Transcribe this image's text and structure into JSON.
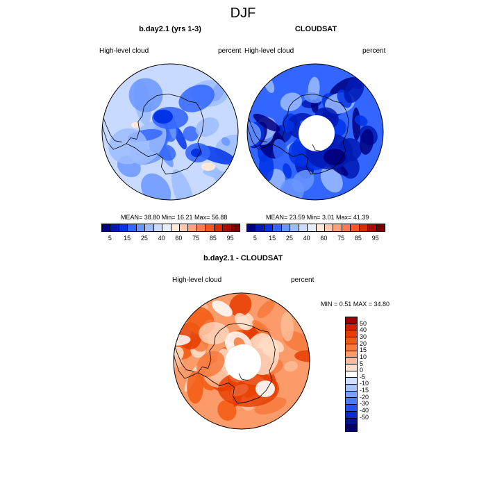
{
  "title": "DJF",
  "panels": [
    {
      "title": "b.day2.1 (yrs 1-3)",
      "left_label": "High-level cloud",
      "right_label": "percent",
      "stats": "MEAN=  38.80  Min=  16.21  Max=  56.88",
      "field": "model"
    },
    {
      "title": "CLOUDSAT",
      "left_label": "High-level cloud",
      "right_label": "percent",
      "stats": "MEAN=  23.59  Min=   3.01  Max=  41.39",
      "field": "obs"
    },
    {
      "title": "b.day2.1 - CLOUDSAT",
      "left_label": "High-level cloud",
      "right_label": "percent",
      "stats": "MIN =   0.51 MAX =  34.80",
      "field": "diff"
    }
  ],
  "colorbar_abs": {
    "colors": [
      "#000080",
      "#0019b3",
      "#0033e6",
      "#3366ff",
      "#6b96ff",
      "#9dbcff",
      "#c8daff",
      "#e5efff",
      "#ffe8d8",
      "#ffc9ad",
      "#ffa37f",
      "#ff7b4f",
      "#f55524",
      "#d42d00",
      "#a80f00",
      "#7a0000"
    ],
    "tick_labels": [
      "5",
      "15",
      "25",
      "40",
      "60",
      "75",
      "85",
      "95"
    ]
  },
  "colorbar_diff": {
    "colors_top_to_bottom": [
      "#990000",
      "#cc2200",
      "#e63c00",
      "#f25a10",
      "#f77a3c",
      "#fb9b6a",
      "#fdbc98",
      "#fee0cc",
      "#ffffff",
      "#cfe0ff",
      "#a6c2ff",
      "#7aa0ff",
      "#4a78ff",
      "#2650f0",
      "#0a2dc8",
      "#00138f",
      "#000066"
    ],
    "tick_labels": [
      "50",
      "40",
      "30",
      "20",
      "15",
      "10",
      "5",
      "0",
      "-5",
      "-10",
      "-15",
      "-20",
      "-30",
      "-40",
      "-50"
    ]
  }
}
